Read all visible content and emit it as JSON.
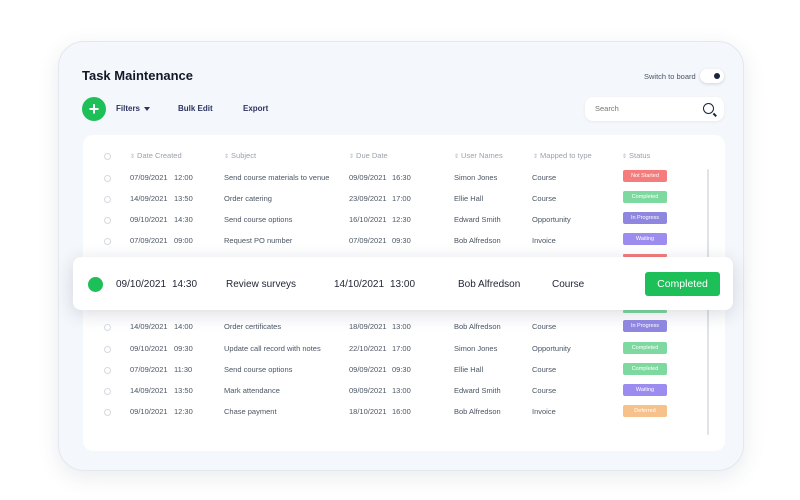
{
  "app": {
    "title": "Task Maintenance",
    "switch_label": "Switch to board",
    "switch_on": true
  },
  "toolbar": {
    "add_label": "+",
    "filters_label": "Filters",
    "bulk_edit_label": "Bulk Edit",
    "export_label": "Export",
    "search_placeholder": "Search"
  },
  "table": {
    "columns": [
      "Date Created",
      "Subject",
      "Due Date",
      "User Names",
      "Mapped to type",
      "Status"
    ],
    "rows_above": [
      {
        "created_date": "07/09/2021",
        "created_time": "12:00",
        "subject": "Send course materials to venue",
        "due_date": "09/09/2021",
        "due_time": "16:30",
        "user": "Simon Jones",
        "type": "Course",
        "status": "Not Started",
        "status_color": "#f47c7c"
      },
      {
        "created_date": "14/09/2021",
        "created_time": "13:50",
        "subject": "Order catering",
        "due_date": "23/09/2021",
        "due_time": "17:00",
        "user": "Ellie Hall",
        "type": "Course",
        "status": "Completed",
        "status_color": "#7ed9a0"
      },
      {
        "created_date": "09/10/2021",
        "created_time": "14:30",
        "subject": "Send course options",
        "due_date": "16/10/2021",
        "due_time": "12:30",
        "user": "Edward Smith",
        "type": "Opportunity",
        "status": "In Progress",
        "status_color": "#8f86e0"
      },
      {
        "created_date": "07/09/2021",
        "created_time": "09:00",
        "subject": "Request PO number",
        "due_date": "07/09/2021",
        "due_time": "09:30",
        "user": "Bob Alfredson",
        "type": "Invoice",
        "status": "Waiting",
        "status_color": "#9d8cf0"
      }
    ],
    "highlighted_row": {
      "created_date": "09/10/2021",
      "created_time": "14:30",
      "subject": "Review surveys",
      "due_date": "14/10/2021",
      "due_time": "13:00",
      "user": "Bob Alfredson",
      "type": "Course",
      "status": "Completed",
      "status_color": "#1dbf59"
    },
    "rows_below": [
      {
        "created_date": "14/09/2021",
        "created_time": "14:00",
        "subject": "Order certificates",
        "due_date": "18/09/2021",
        "due_time": "13:00",
        "user": "Bob Alfredson",
        "type": "Course",
        "status": "In Progress",
        "status_color": "#8f86e0"
      },
      {
        "created_date": "09/10/2021",
        "created_time": "09:30",
        "subject": "Update call record with notes",
        "due_date": "22/10/2021",
        "due_time": "17:00",
        "user": "Simon Jones",
        "type": "Opportunity",
        "status": "Completed",
        "status_color": "#7ed9a0"
      },
      {
        "created_date": "07/09/2021",
        "created_time": "11:30",
        "subject": "Send course options",
        "due_date": "09/09/2021",
        "due_time": "09:30",
        "user": "Ellie Hall",
        "type": "Course",
        "status": "Completed",
        "status_color": "#7ed9a0"
      },
      {
        "created_date": "14/09/2021",
        "created_time": "13:50",
        "subject": "Mark attendance",
        "due_date": "09/09/2021",
        "due_time": "13:00",
        "user": "Edward Smith",
        "type": "Course",
        "status": "Waiting",
        "status_color": "#9d8cf0"
      },
      {
        "created_date": "09/10/2021",
        "created_time": "12:30",
        "subject": "Chase payment",
        "due_date": "18/10/2021",
        "due_time": "16:00",
        "user": "Bob Alfredson",
        "type": "Invoice",
        "status": "Deferred",
        "status_color": "#f6c18a"
      }
    ],
    "peek_colors": {
      "above": "#f47c7c",
      "below": "#7ed9a0"
    }
  },
  "colors": {
    "accent": "#1dbf59",
    "text": "#1f2433"
  }
}
